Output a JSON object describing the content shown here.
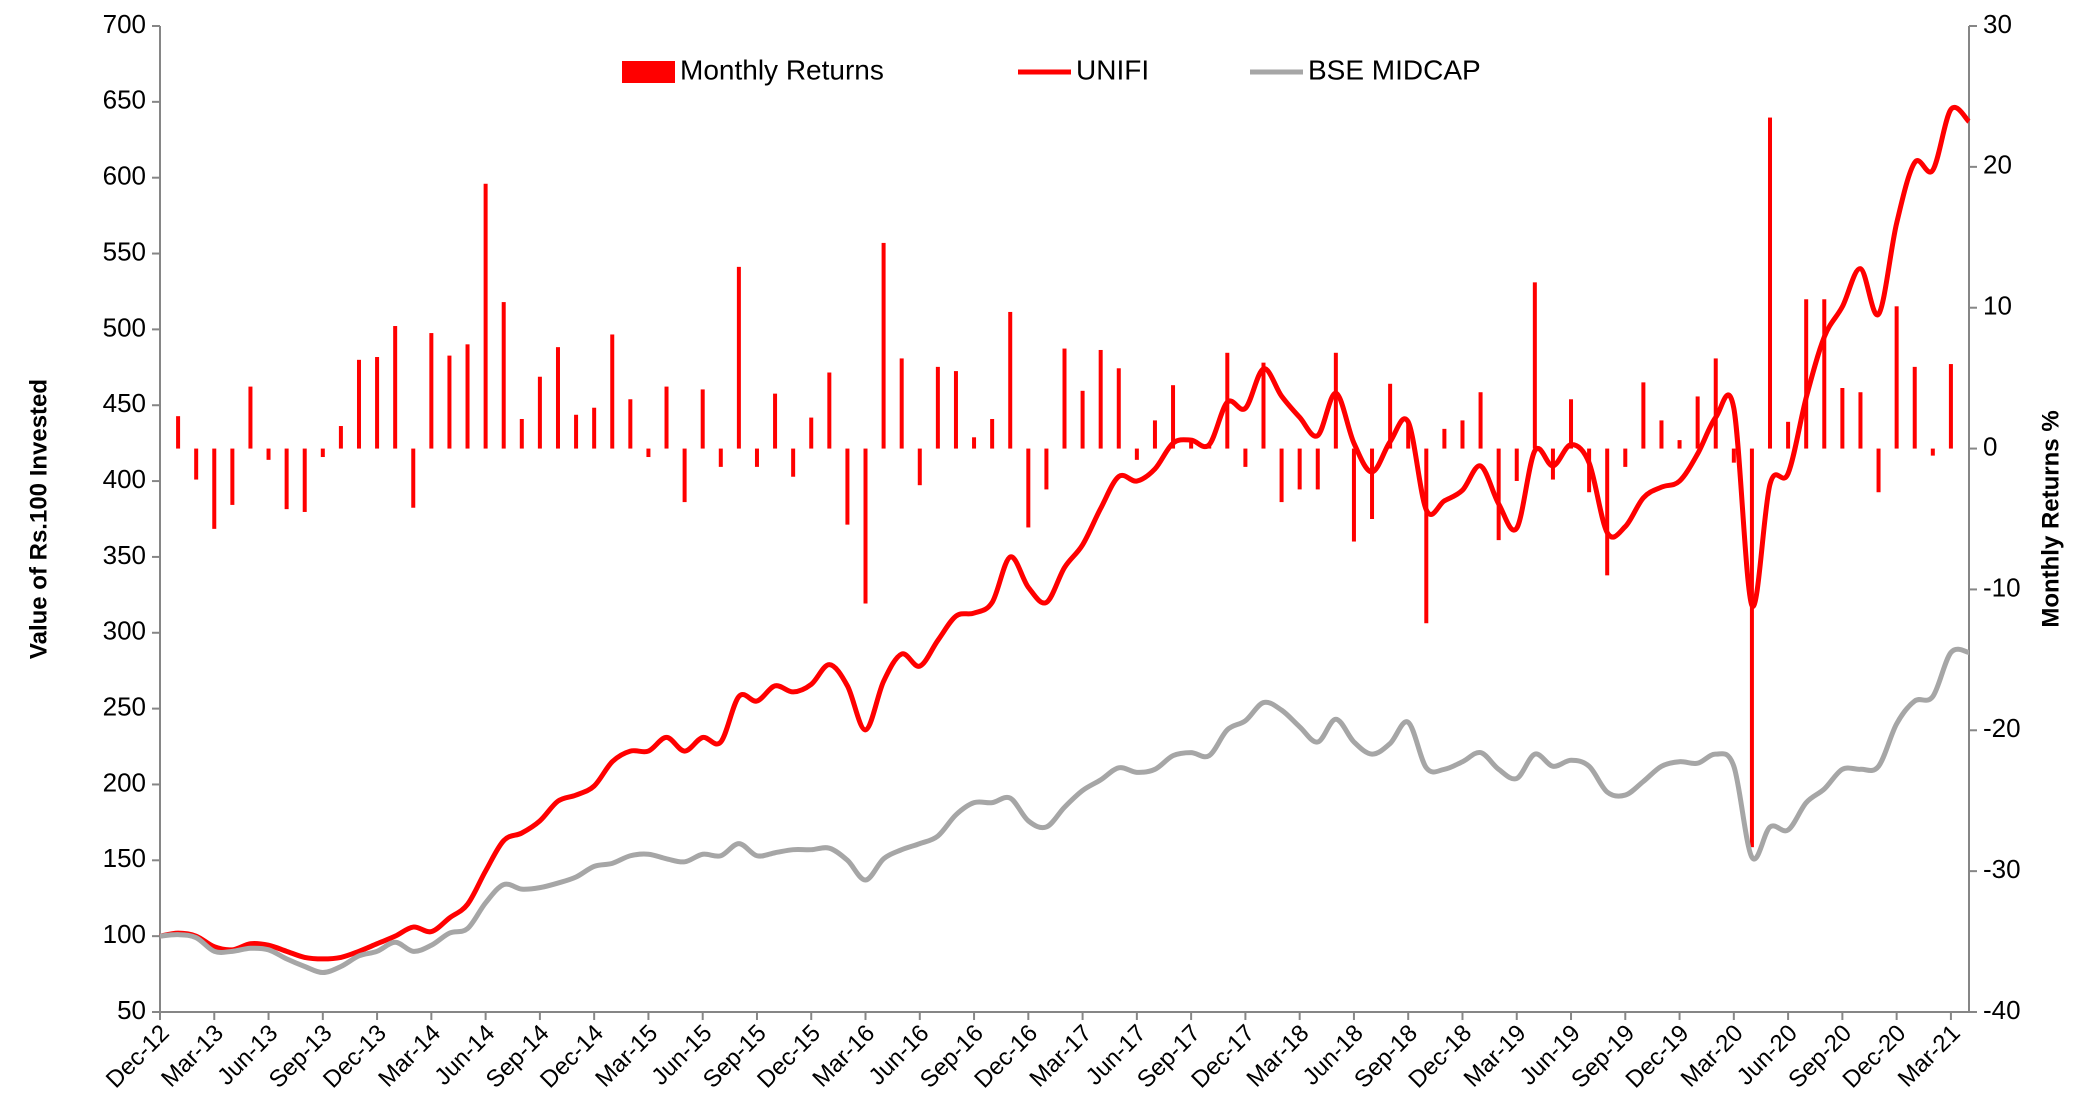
{
  "chart_data": {
    "type": "combo",
    "categories": [
      "Dec-12",
      null,
      null,
      "Mar-13",
      null,
      null,
      "Jun-13",
      null,
      null,
      "Sep-13",
      null,
      null,
      "Dec-13",
      null,
      null,
      "Mar-14",
      null,
      null,
      "Jun-14",
      null,
      null,
      "Sep-14",
      null,
      null,
      "Dec-14",
      null,
      null,
      "Mar-15",
      null,
      null,
      "Jun-15",
      null,
      null,
      "Sep-15",
      null,
      null,
      "Dec-15",
      null,
      null,
      "Mar-16",
      null,
      null,
      "Jun-16",
      null,
      null,
      "Sep-16",
      null,
      null,
      "Dec-16",
      null,
      null,
      "Mar-17",
      null,
      null,
      "Jun-17",
      null,
      null,
      "Sep-17",
      null,
      null,
      "Dec-17",
      null,
      null,
      "Mar-18",
      null,
      null,
      "Jun-18",
      null,
      null,
      "Sep-18",
      null,
      null,
      "Dec-18",
      null,
      null,
      "Mar-19",
      null,
      null,
      "Jun-19",
      null,
      null,
      "Sep-19",
      null,
      null,
      "Dec-19",
      null,
      null,
      "Mar-20",
      null,
      null,
      "Jun-20",
      null,
      null,
      "Sep-20",
      null,
      null,
      "Dec-20",
      null,
      null,
      "Mar-21",
      null
    ],
    "series": [
      {
        "name": "Monthly Returns",
        "type": "bar",
        "axis": "y2",
        "color": "#ff0000",
        "values": [
          null,
          2.3,
          -2.2,
          -5.7,
          -4.0,
          4.4,
          -0.8,
          -4.3,
          -4.5,
          -0.6,
          1.6,
          6.3,
          6.5,
          8.7,
          -4.2,
          8.2,
          6.6,
          7.4,
          18.8,
          10.4,
          2.1,
          5.1,
          7.2,
          2.4,
          2.9,
          8.1,
          3.5,
          -0.6,
          4.4,
          -3.8,
          4.2,
          -1.3,
          12.9,
          -1.3,
          3.9,
          -2.0,
          2.2,
          5.4,
          -5.4,
          -11.0,
          14.6,
          6.4,
          -2.6,
          5.8,
          5.5,
          0.8,
          2.1,
          9.7,
          -5.6,
          -2.9,
          7.1,
          4.1,
          7.0,
          5.7,
          -0.8,
          2.0,
          4.5,
          0.6,
          0.4,
          6.8,
          -1.3,
          6.1,
          -3.8,
          -2.9,
          -2.9,
          6.8,
          -6.6,
          -5.0,
          4.6,
          2.0,
          -12.4,
          1.4,
          2.0,
          4.0,
          -6.5,
          -2.3,
          11.8,
          -2.2,
          3.5,
          -3.1,
          -9.0,
          -1.3,
          4.7,
          2.0,
          0.6,
          3.7,
          6.4,
          -1.0,
          -28.3,
          23.5,
          1.9,
          10.6,
          10.6,
          4.3,
          4.0,
          -3.1,
          10.1,
          5.8,
          -0.5,
          6.0,
          null
        ]
      },
      {
        "name": "UNIFI",
        "type": "line",
        "color": "#ff0000",
        "values": [
          100,
          102,
          100,
          93,
          91,
          95,
          94,
          90,
          86,
          85,
          86,
          90,
          95,
          100,
          106,
          103,
          112,
          121,
          143,
          163,
          168,
          176,
          189,
          193,
          199,
          215,
          222,
          222,
          231,
          222,
          231,
          228,
          258,
          255,
          265,
          261,
          266,
          279,
          265,
          236,
          268,
          286,
          278,
          295,
          311,
          313,
          320,
          350,
          330,
          320,
          343,
          358,
          382,
          403,
          400,
          408,
          425,
          427,
          424,
          452,
          448,
          474,
          456,
          442,
          430,
          458,
          425,
          406,
          426,
          439,
          381,
          387,
          394,
          410,
          385,
          369,
          420,
          410,
          424,
          412,
          366,
          370,
          389,
          396,
          400,
          418,
          442,
          448,
          318,
          398,
          405,
          455,
          495,
          515,
          540,
          510,
          570,
          610,
          605,
          645,
          637
        ]
      },
      {
        "name": "BSE MIDCAP",
        "type": "line",
        "color": "#a6a6a6",
        "values": [
          100,
          101,
          99,
          90,
          90,
          92,
          91,
          85,
          80,
          76,
          80,
          87,
          90,
          96,
          90,
          94,
          102,
          105,
          122,
          134,
          131,
          132,
          135,
          139,
          146,
          148,
          153,
          154,
          151,
          149,
          154,
          153,
          161,
          153,
          155,
          157,
          157,
          158,
          150,
          137,
          151,
          157,
          161,
          166,
          180,
          188,
          188,
          191,
          176,
          172,
          185,
          196,
          203,
          211,
          208,
          210,
          219,
          221,
          219,
          236,
          242,
          254,
          249,
          238,
          228,
          243,
          228,
          220,
          227,
          241,
          211,
          210,
          215,
          221,
          210,
          204,
          220,
          212,
          216,
          212,
          195,
          193,
          202,
          212,
          215,
          214,
          220,
          212,
          152,
          172,
          170,
          188,
          197,
          210,
          210,
          212,
          240,
          255,
          258,
          287,
          287
        ]
      }
    ],
    "ylabel": "Value of Rs.100 Invested",
    "y2label": "Monthly Returns %",
    "ylim": [
      50,
      700
    ],
    "yticks": [
      50,
      100,
      150,
      200,
      250,
      300,
      350,
      400,
      450,
      500,
      550,
      600,
      650,
      700
    ],
    "y2lim": [
      -40,
      30
    ],
    "y2ticks": [
      -40,
      -30,
      -20,
      -10,
      0,
      10,
      20,
      30
    ],
    "legend": "top",
    "grid": false
  }
}
